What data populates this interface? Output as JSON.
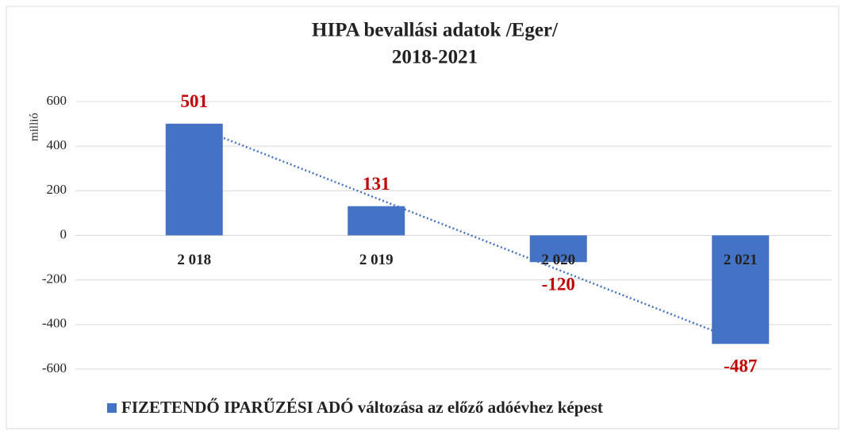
{
  "chart_data": {
    "type": "bar",
    "title": "HIPA bevallási adatok /Eger/",
    "subtitle": "2018-2021",
    "y_label": "millió",
    "categories": [
      "2 018",
      "2 019",
      "2 020",
      "2 021"
    ],
    "series": [
      {
        "name": "FIZETENDŐ IPARŰZÉSI ADÓ változása az előző adóévhez képest",
        "color": "#4472c4",
        "values": [
          501,
          131,
          -120,
          -487
        ]
      }
    ],
    "value_label_color": "#c00000",
    "ylim": [
      -600,
      600
    ],
    "yticks": [
      -600,
      -400,
      -200,
      0,
      200,
      400,
      600
    ],
    "grid": true,
    "trendline": "linear",
    "legend": "bottom-left"
  }
}
